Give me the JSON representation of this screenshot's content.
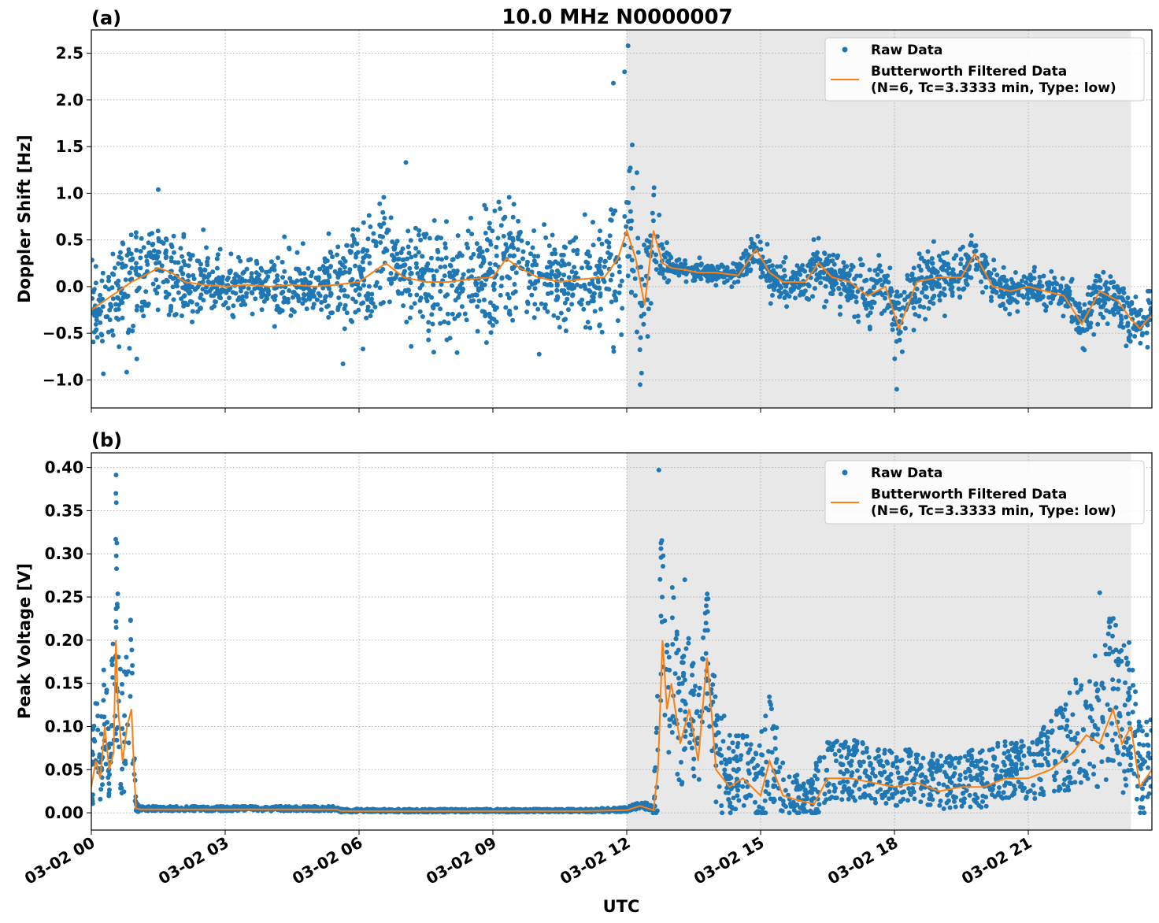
{
  "figure": {
    "title": "10.0 MHz N0000007",
    "xlabel": "UTC",
    "colors": {
      "raw": "#1f77b4",
      "filtered": "#ff7f0e",
      "shade": "#e8e8e8",
      "grid": "#b0b0b0"
    }
  },
  "chart_data": [
    {
      "type": "scatter",
      "panel_label": "(a)",
      "ylabel": "Doppler Shift [Hz]",
      "ylim": [
        -1.3,
        2.75
      ],
      "yticks": [
        -1.0,
        -0.5,
        0.0,
        0.5,
        1.0,
        1.5,
        2.0,
        2.5
      ],
      "ytick_labels": [
        "−1.0",
        "−0.5",
        "0.0",
        "0.5",
        "1.0",
        "1.5",
        "2.0",
        "2.5"
      ],
      "xlim_hours": [
        0,
        23.77
      ],
      "shaded_region_hours": [
        12.0,
        23.3
      ],
      "legend": {
        "position": "top-right",
        "raw_label": "Raw Data",
        "filtered_label_line1": "Butterworth Filtered Data",
        "filtered_label_line2": "(N=6, Tc=3.3333 min, Type: low)"
      },
      "series": [
        {
          "name": "Butterworth Filtered Data",
          "x_hours": [
            0,
            0.3,
            0.6,
            0.9,
            1.2,
            1.5,
            1.8,
            2.1,
            2.5,
            3,
            3.5,
            4,
            4.5,
            5,
            5.5,
            6,
            6.3,
            6.6,
            7,
            7.5,
            8,
            8.5,
            9,
            9.3,
            9.6,
            10,
            10.5,
            11,
            11.5,
            11.8,
            12.0,
            12.2,
            12.4,
            12.6,
            12.8,
            13,
            13.3,
            13.6,
            14,
            14.5,
            14.9,
            15.2,
            15.5,
            16,
            16.3,
            16.6,
            17,
            17.4,
            17.8,
            18.1,
            18.5,
            19,
            19.5,
            19.8,
            20.2,
            20.6,
            21,
            21.4,
            21.8,
            22.2,
            22.6,
            23,
            23.3,
            23.5,
            23.77
          ],
          "values": [
            -0.25,
            -0.15,
            -0.05,
            0.05,
            0.12,
            0.2,
            0.15,
            0.05,
            0.02,
            0.0,
            0.02,
            0.0,
            0.02,
            0.0,
            0.02,
            0.05,
            0.15,
            0.25,
            0.1,
            0.05,
            0.05,
            0.08,
            0.1,
            0.3,
            0.2,
            0.1,
            0.05,
            0.08,
            0.1,
            0.3,
            0.6,
            0.3,
            -0.2,
            0.6,
            0.25,
            0.2,
            0.18,
            0.15,
            0.15,
            0.12,
            0.4,
            0.15,
            0.05,
            0.05,
            0.25,
            0.1,
            0.05,
            -0.1,
            0.0,
            -0.45,
            0.05,
            0.1,
            0.1,
            0.35,
            0.0,
            -0.05,
            0.0,
            -0.05,
            -0.1,
            -0.4,
            -0.05,
            -0.15,
            -0.35,
            -0.45,
            -0.3
          ]
        },
        {
          "name": "Raw Data",
          "spread_envelope_hours": [
            0,
            1,
            2,
            3,
            5,
            6,
            7,
            9,
            10.5,
            11.5,
            12,
            12.7,
            13,
            14.5,
            15,
            16,
            17,
            18,
            19,
            20,
            21,
            22,
            23,
            23.77
          ],
          "spread_envelope_hz": [
            0.35,
            0.55,
            0.4,
            0.3,
            0.3,
            0.55,
            0.55,
            0.6,
            0.45,
            0.5,
            0.9,
            0.35,
            0.1,
            0.08,
            0.2,
            0.2,
            0.25,
            0.35,
            0.3,
            0.2,
            0.15,
            0.2,
            0.3,
            0.25
          ],
          "notable_values": [
            2.58,
            2.3,
            2.18,
            1.33,
            1.04,
            -1.05,
            -1.1
          ]
        }
      ]
    },
    {
      "type": "scatter",
      "panel_label": "(b)",
      "ylabel": "Peak Voltage [V]",
      "ylim": [
        -0.02,
        0.417
      ],
      "yticks": [
        0.0,
        0.05,
        0.1,
        0.15,
        0.2,
        0.25,
        0.3,
        0.35,
        0.4
      ],
      "ytick_labels": [
        "0.00",
        "0.05",
        "0.10",
        "0.15",
        "0.20",
        "0.25",
        "0.30",
        "0.35",
        "0.40"
      ],
      "xlim_hours": [
        0,
        23.77
      ],
      "xticks_hours": [
        0,
        3,
        6,
        9,
        12,
        15,
        18,
        21
      ],
      "xtick_labels": [
        "03-02 00",
        "03-02 03",
        "03-02 06",
        "03-02 09",
        "03-02 12",
        "03-02 15",
        "03-02 18",
        "03-02 21"
      ],
      "shaded_region_hours": [
        12.0,
        23.3
      ],
      "legend": {
        "position": "top-right",
        "raw_label": "Raw Data",
        "filtered_label_line1": "Butterworth Filtered Data",
        "filtered_label_line2": "(N=6, Tc=3.3333 min, Type: low)"
      },
      "series": [
        {
          "name": "Butterworth Filtered Data",
          "x_hours": [
            0,
            0.1,
            0.2,
            0.3,
            0.4,
            0.5,
            0.55,
            0.6,
            0.7,
            0.8,
            0.9,
            0.95,
            1.0,
            1.1,
            2,
            3,
            4,
            5.5,
            5.6,
            7,
            9,
            11,
            12,
            12.3,
            12.6,
            12.7,
            12.8,
            12.9,
            13.0,
            13.2,
            13.4,
            13.6,
            13.8,
            14.0,
            14.3,
            14.6,
            15.0,
            15.2,
            15.5,
            15.8,
            16.2,
            16.5,
            17,
            17.5,
            18,
            18.5,
            19,
            19.5,
            20,
            20.5,
            21,
            21.5,
            22,
            22.3,
            22.6,
            22.9,
            23.1,
            23.3,
            23.5,
            23.77
          ],
          "values": [
            0.03,
            0.06,
            0.04,
            0.1,
            0.05,
            0.07,
            0.2,
            0.12,
            0.06,
            0.1,
            0.12,
            0.06,
            0.005,
            0.004,
            0.004,
            0.004,
            0.004,
            0.004,
            0.002,
            0.002,
            0.002,
            0.002,
            0.003,
            0.008,
            0.003,
            0.05,
            0.2,
            0.12,
            0.15,
            0.08,
            0.12,
            0.06,
            0.18,
            0.05,
            0.03,
            0.04,
            0.02,
            0.06,
            0.02,
            0.015,
            0.01,
            0.04,
            0.04,
            0.035,
            0.03,
            0.035,
            0.025,
            0.03,
            0.03,
            0.04,
            0.04,
            0.05,
            0.07,
            0.09,
            0.08,
            0.12,
            0.08,
            0.1,
            0.03,
            0.05
          ]
        },
        {
          "name": "Raw Data",
          "spread_upper_hours": [
            0,
            0.2,
            0.4,
            0.55,
            0.7,
            0.9,
            1.0,
            1.1,
            5.5,
            5.6,
            11,
            12,
            12.6,
            12.72,
            12.9,
            13.2,
            13.6,
            14,
            14.4,
            14.8,
            15.1,
            15.5,
            16.0,
            16.2,
            17,
            18,
            19,
            20,
            21,
            21.5,
            22,
            22.5,
            22.8,
            23.1,
            23.4,
            23.77
          ],
          "spread_upper_v": [
            0.09,
            0.15,
            0.12,
            0.35,
            0.15,
            0.2,
            0.015,
            0.006,
            0.006,
            0.004,
            0.004,
            0.006,
            0.012,
            0.3,
            0.22,
            0.2,
            0.14,
            0.15,
            0.1,
            0.1,
            0.15,
            0.08,
            0.035,
            0.08,
            0.08,
            0.07,
            0.07,
            0.075,
            0.08,
            0.1,
            0.14,
            0.17,
            0.2,
            0.2,
            0.15,
            0.1
          ],
          "notable_values": [
            0.397,
            0.37,
            0.27,
            0.255
          ]
        }
      ]
    }
  ]
}
